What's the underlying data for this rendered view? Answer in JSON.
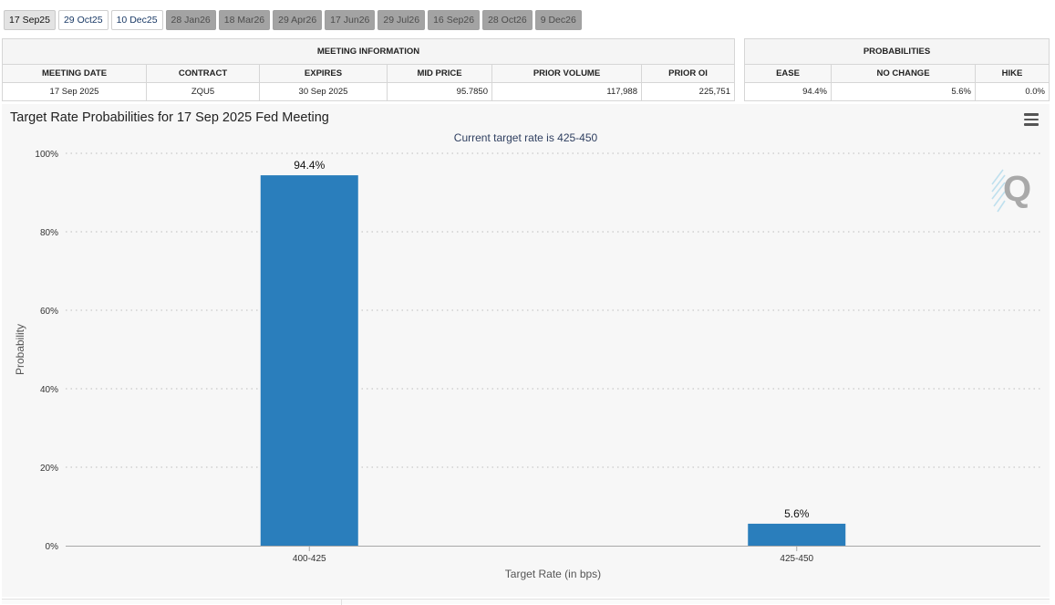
{
  "tabs": [
    {
      "label": "17 Sep25",
      "state": "selected"
    },
    {
      "label": "29 Oct25",
      "state": "active"
    },
    {
      "label": "10 Dec25",
      "state": "active"
    },
    {
      "label": "28 Jan26",
      "state": "inactive"
    },
    {
      "label": "18 Mar26",
      "state": "inactive"
    },
    {
      "label": "29 Apr26",
      "state": "inactive"
    },
    {
      "label": "17 Jun26",
      "state": "inactive"
    },
    {
      "label": "29 Jul26",
      "state": "inactive"
    },
    {
      "label": "16 Sep26",
      "state": "inactive"
    },
    {
      "label": "28 Oct26",
      "state": "inactive"
    },
    {
      "label": "9 Dec26",
      "state": "inactive"
    }
  ],
  "meeting_info": {
    "section_title": "MEETING INFORMATION",
    "headers": {
      "meeting_date": "MEETING DATE",
      "contract": "CONTRACT",
      "expires": "EXPIRES",
      "mid_price": "MID PRICE",
      "prior_volume": "PRIOR VOLUME",
      "prior_oi": "PRIOR OI"
    },
    "row": {
      "meeting_date": "17 Sep 2025",
      "contract": "ZQU5",
      "expires": "30 Sep 2025",
      "mid_price": "95.7850",
      "prior_volume": "117,988",
      "prior_oi": "225,751"
    }
  },
  "probabilities": {
    "section_title": "PROBABILITIES",
    "headers": {
      "ease": "EASE",
      "no_change": "NO CHANGE",
      "hike": "HIKE"
    },
    "row": {
      "ease": "94.4%",
      "no_change": "5.6%",
      "hike": "0.0%"
    }
  },
  "chart": {
    "menu_icon": "hamburger-menu-icon",
    "logo_icon": "q-logo-icon"
  },
  "colors": {
    "bar": "#2a7ebc",
    "tab_inactive": "#a3a3a3",
    "panel_bg": "#f7f7f7",
    "subtitle": "#2f3f60"
  },
  "chart_data": {
    "type": "bar",
    "title": "Target Rate Probabilities for 17 Sep 2025 Fed Meeting",
    "subtitle": "Current target rate is 425-450",
    "xlabel": "Target Rate (in bps)",
    "ylabel": "Probability",
    "categories": [
      "400-425",
      "425-450"
    ],
    "values": [
      94.4,
      5.6
    ],
    "data_labels": [
      "94.4%",
      "5.6%"
    ],
    "ylim": [
      0,
      100
    ],
    "yticks": [
      0,
      20,
      40,
      60,
      80,
      100
    ],
    "ytick_labels": [
      "0%",
      "20%",
      "40%",
      "60%",
      "80%",
      "100%"
    ],
    "grid": true,
    "legend": "none"
  }
}
